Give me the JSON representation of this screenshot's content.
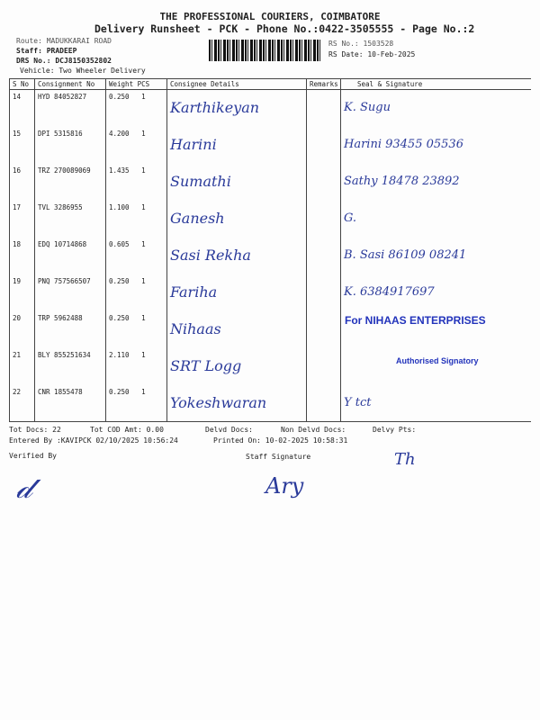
{
  "header": {
    "company": "THE PROFESSIONAL COURIERS, COIMBATORE",
    "title": "Delivery Runsheet - PCK - Phone No.:0422-3505555 - Page No.:2",
    "route": "Route: MADUKKARAI ROAD",
    "staff": "Staff: PRADEEP",
    "drs": "DRS No.: DCJ8150352802",
    "vehicle": "Vehicle: Two Wheeler Delivery",
    "rs_no": "RS No.: 1503528",
    "rs_date": "RS Date: 10-Feb-2025"
  },
  "columns": [
    "S No",
    "Consignment No",
    "Weight  PCS",
    "Consignee Details",
    "Remarks",
    "Seal & Signature"
  ],
  "rows": [
    {
      "sno": "14",
      "cn": "HYD 84052827",
      "wt": "0.250",
      "pcs": "1",
      "consignee": "Karthikeyan",
      "sig": "K. Sugu"
    },
    {
      "sno": "15",
      "cn": "DPI 5315816",
      "wt": "4.200",
      "pcs": "1",
      "consignee": "Harini",
      "sig": "Harini 93455 05536"
    },
    {
      "sno": "16",
      "cn": "TRZ 270089069",
      "wt": "1.435",
      "pcs": "1",
      "consignee": "Sumathi",
      "sig": "Sathy 18478 23892"
    },
    {
      "sno": "17",
      "cn": "TVL 3286955",
      "wt": "1.100",
      "pcs": "1",
      "consignee": "Ganesh",
      "sig": "G."
    },
    {
      "sno": "18",
      "cn": "EDQ 10714868",
      "wt": "0.605",
      "pcs": "1",
      "consignee": "Sasi Rekha",
      "sig": "B. Sasi 86109 08241"
    },
    {
      "sno": "19",
      "cn": "PNQ 757566507",
      "wt": "0.250",
      "pcs": "1",
      "consignee": "Fariha",
      "sig": "K. 6384917697"
    },
    {
      "sno": "20",
      "cn": "TRP 5962488",
      "wt": "0.250",
      "pcs": "1",
      "consignee": "Nihaas",
      "sig": ""
    },
    {
      "sno": "21",
      "cn": "BLY 855251634",
      "wt": "2.110",
      "pcs": "1",
      "consignee": "SRT Logg",
      "sig": ""
    },
    {
      "sno": "22",
      "cn": "CNR 1855478",
      "wt": "0.250",
      "pcs": "1",
      "consignee": "Yokeshwaran",
      "sig": "Y tct"
    }
  ],
  "stamp": {
    "line1": "For NIHAAS ENTERPRISES",
    "line2": "Authorised Signatory"
  },
  "footer": {
    "tot_docs": "Tot Docs:  22",
    "tot_cod": "Tot COD Amt:    0.00",
    "delvd": "Delvd Docs:",
    "non_delvd": "Non Delvd Docs:",
    "delvy_pts": "Delvy Pts:",
    "entered": "Entered By :KAVIPCK 02/10/2025 10:56:24",
    "printed": "Printed On: 10-02-2025 10:58:31",
    "verified": "Verified By",
    "staff_sig": "Staff Signature"
  }
}
